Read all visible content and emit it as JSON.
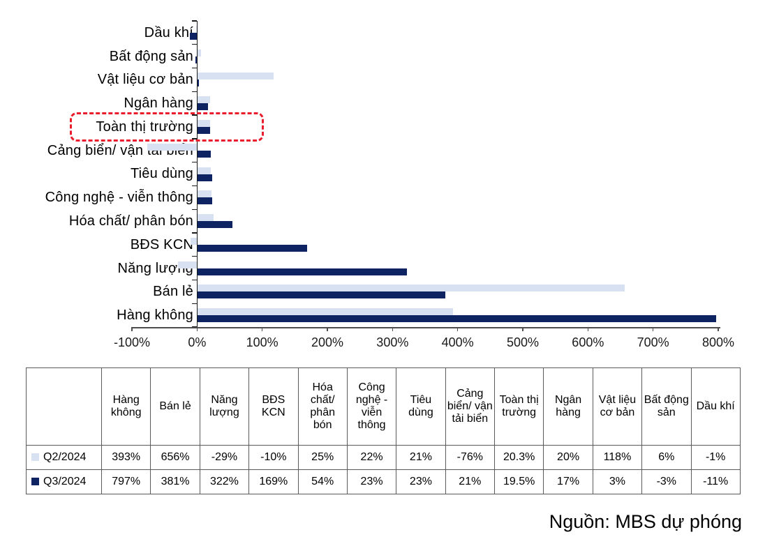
{
  "chart_data": {
    "type": "bar",
    "orientation": "horizontal",
    "title": "",
    "xlabel": "",
    "ylabel": "",
    "xlim": [
      -100,
      800
    ],
    "x_ticks": [
      "-100%",
      "0%",
      "100%",
      "200%",
      "300%",
      "400%",
      "500%",
      "600%",
      "700%",
      "800%"
    ],
    "grid": false,
    "legend_position": "table-below",
    "categories_top_to_bottom": [
      "Dầu khí",
      "Bất động sản",
      "Vật liệu cơ bản",
      "Ngân hàng",
      "Toàn thị trường",
      "Cảng biển/ vận tải biển",
      "Tiêu dùng",
      "Công nghệ - viễn thông",
      "Hóa chất/ phân bón",
      "BĐS KCN",
      "Năng lượng",
      "Bán lẻ",
      "Hàng không"
    ],
    "series": [
      {
        "name": "Q2/2024",
        "color": "#d8e1f1",
        "values_pct": [
          -1,
          6,
          118,
          20,
          20.3,
          -76,
          21,
          22,
          25,
          -10,
          -29,
          656,
          393
        ]
      },
      {
        "name": "Q3/2024",
        "color": "#0e2462",
        "values_pct": [
          -11,
          -3,
          3,
          17,
          19.5,
          21,
          23,
          23,
          54,
          169,
          322,
          381,
          797
        ]
      }
    ],
    "highlight": {
      "category": "Toàn thị trường",
      "style": "red-dashed-box",
      "color": "#ea1d2d"
    }
  },
  "table": {
    "corner_label": "",
    "column_headers": [
      "Hàng không",
      "Bán lẻ",
      "Năng lượng",
      "BĐS KCN",
      "Hóa chất/ phân bón",
      "Công nghệ - viễn thông",
      "Tiêu dùng",
      "Cảng biển/ vận tải biển",
      "Toàn thị trường",
      "Ngân hàng",
      "Vật liệu cơ bản",
      "Bất động sản",
      "Dầu khí"
    ],
    "rows": [
      {
        "label": "Q2/2024",
        "marker_color": "#d8e1f1",
        "values": [
          "393%",
          "656%",
          "-29%",
          "-10%",
          "25%",
          "22%",
          "21%",
          "-76%",
          "20.3%",
          "20%",
          "118%",
          "6%",
          "-1%"
        ]
      },
      {
        "label": "Q3/2024",
        "marker_color": "#0e2462",
        "values": [
          "797%",
          "381%",
          "322%",
          "169%",
          "54%",
          "23%",
          "23%",
          "21%",
          "19.5%",
          "17%",
          "3%",
          "-3%",
          "-11%"
        ]
      }
    ]
  },
  "source_note": "Nguồn: MBS dự phóng",
  "colors": {
    "series_q2": "#d8e1f1",
    "series_q3": "#0e2462",
    "highlight_red": "#ea1d2d",
    "axis_gray": "#4d4d4d",
    "category_axis_black": "#1a1a1a"
  }
}
